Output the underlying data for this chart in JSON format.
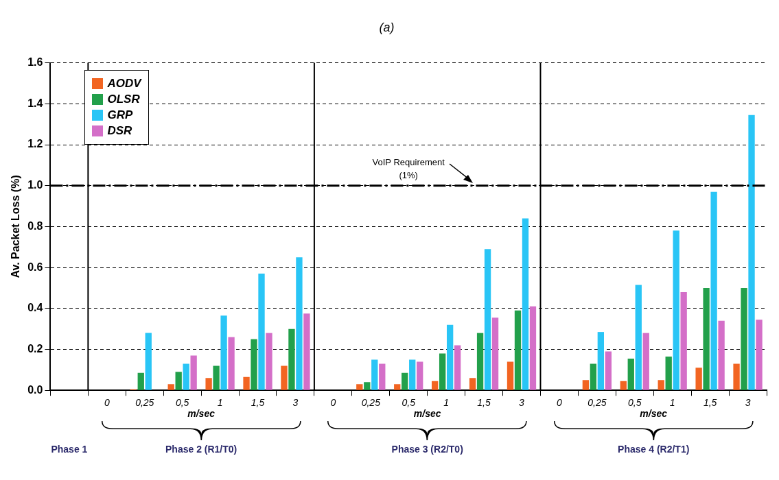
{
  "chart_data": {
    "type": "bar",
    "title": "(a)",
    "ylabel": "Av. Packet Loss (%)",
    "xlabel": "m/sec",
    "categories": [
      null,
      "0",
      "0,25",
      "0,5",
      "1",
      "1,5",
      "3",
      "0",
      "0,25",
      "0,5",
      "1",
      "1,5",
      "3",
      "0",
      "0,25",
      "0,5",
      "1",
      "1,5",
      "3"
    ],
    "series": [
      {
        "name": "AODV",
        "color": "#f26522",
        "values": [
          null,
          0,
          0.005,
          0.03,
          0.06,
          0.065,
          0.12,
          0,
          0.03,
          0.03,
          0.045,
          0.06,
          0.14,
          0,
          0.05,
          0.045,
          0.05,
          0.11,
          0.13
        ]
      },
      {
        "name": "OLSR",
        "color": "#22a04b",
        "values": [
          null,
          0,
          0.085,
          0.09,
          0.12,
          0.25,
          0.3,
          0,
          0.04,
          0.085,
          0.18,
          0.28,
          0.39,
          0,
          0.13,
          0.155,
          0.165,
          0.5,
          0.5
        ]
      },
      {
        "name": "GRP",
        "color": "#29c5f6",
        "values": [
          null,
          0,
          0.28,
          0.13,
          0.365,
          0.57,
          0.65,
          0,
          0.15,
          0.15,
          0.32,
          0.69,
          0.84,
          0,
          0.285,
          0.515,
          0.78,
          0.97,
          1.345
        ]
      },
      {
        "name": "DSR",
        "color": "#d46fc8",
        "values": [
          null,
          0,
          0,
          0.17,
          0.26,
          0.28,
          0.375,
          0,
          0.13,
          0.14,
          0.22,
          0.355,
          0.41,
          0,
          0.19,
          0.28,
          0.48,
          0.34,
          0.345
        ]
      }
    ],
    "ylim": [
      0,
      1.6
    ],
    "yticks": [
      {
        "value": 0,
        "label": "0.0"
      },
      {
        "value": 0.2,
        "label": "0.2"
      },
      {
        "value": 0.4,
        "label": "0.4"
      },
      {
        "value": 0.6,
        "label": "0.6"
      },
      {
        "value": 0.8,
        "label": "0.8"
      },
      {
        "value": 1,
        "label": "1.0"
      },
      {
        "value": 1.2,
        "label": "1.2"
      },
      {
        "value": 1.4,
        "label": "1.4"
      },
      {
        "value": 1.6,
        "label": "1.6"
      }
    ],
    "grid": "y",
    "legend": "top left",
    "ref_lines": [
      {
        "axis": "y",
        "value": 1,
        "label": "VoIP Requirement (1%)",
        "color": "#000000",
        "line_style": "dashed"
      }
    ],
    "annotations": [
      "Phase 1",
      "Phase 2 (R1/T0)",
      "Phase 3 (R2/T0)",
      "Phase 4 (R2/T1)"
    ]
  }
}
